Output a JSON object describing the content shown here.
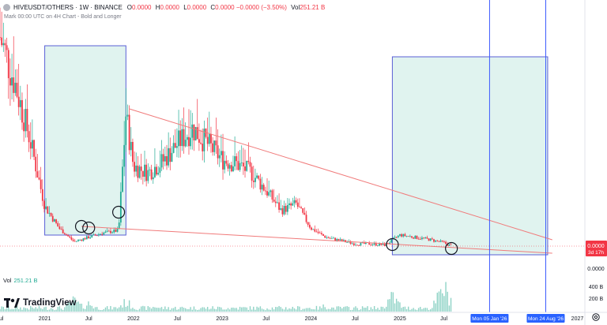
{
  "header": {
    "symbol_line": "HIVEUSDT/OTHERS · 1W · BINANCE",
    "ohlc": [
      {
        "k": "O",
        "v": "0.0000"
      },
      {
        "k": "H",
        "v": "0.0000"
      },
      {
        "k": "L",
        "v": "0.0000"
      },
      {
        "k": "C",
        "v": "0.0000 −0.0000 (−3.50%)"
      },
      {
        "k": "Vol",
        "v": "251.21 B"
      }
    ],
    "mark_line": "Mark 00:00 UTC on 4H Chart - Bold and Longer"
  },
  "volume": {
    "label": "Vol",
    "value": "251.21 B"
  },
  "logo": {
    "text": "TradingView"
  },
  "price_axis": {
    "labels": [
      "0.0000"
    ],
    "current_price": "0.0000",
    "countdown": "3d 17h",
    "badge_color": "#f23645"
  },
  "volume_axis": {
    "labels": [
      "400 B",
      "200 B"
    ]
  },
  "time_axis": {
    "labels": [
      "Jul",
      "2021",
      "Jul",
      "2022",
      "Jul",
      "2023",
      "Jul",
      "2024",
      "Jul",
      "2025",
      "Jul",
      "2027"
    ],
    "range_labels": [
      "Mon 05 Jan '26",
      "Mon 24 Aug '26"
    ]
  },
  "chart_data": {
    "type": "candlestick",
    "symbol": "HIVEUSDT/OTHERS",
    "interval": "1W",
    "exchange": "BINANCE",
    "x_range": [
      "2020-07",
      "2027-02"
    ],
    "trend": [
      {
        "date": "2020-07",
        "level": 0.94
      },
      {
        "date": "2020-09",
        "level": 0.73
      },
      {
        "date": "2020-11",
        "level": 0.48
      },
      {
        "date": "2021-01",
        "level": 0.18
      },
      {
        "date": "2021-03",
        "level": 0.08
      },
      {
        "date": "2021-05",
        "level": 0.02
      },
      {
        "date": "2021-07",
        "level": 0.04
      },
      {
        "date": "2021-09",
        "level": 0.06
      },
      {
        "date": "2021-11",
        "level": 0.07
      },
      {
        "date": "2021-12",
        "level": 0.59
      },
      {
        "date": "2022-01",
        "level": 0.36
      },
      {
        "date": "2022-03",
        "level": 0.33
      },
      {
        "date": "2022-05",
        "level": 0.38
      },
      {
        "date": "2022-07",
        "level": 0.46
      },
      {
        "date": "2022-09",
        "level": 0.53
      },
      {
        "date": "2022-11",
        "level": 0.46
      },
      {
        "date": "2023-01",
        "level": 0.39
      },
      {
        "date": "2023-03",
        "level": 0.37
      },
      {
        "date": "2023-05",
        "level": 0.33
      },
      {
        "date": "2023-07",
        "level": 0.25
      },
      {
        "date": "2023-09",
        "level": 0.16
      },
      {
        "date": "2023-11",
        "level": 0.19
      },
      {
        "date": "2024-01",
        "level": 0.08
      },
      {
        "date": "2024-03",
        "level": 0.04
      },
      {
        "date": "2024-05",
        "level": 0.025
      },
      {
        "date": "2024-07",
        "level": 0.01
      },
      {
        "date": "2024-09",
        "level": 0.01
      },
      {
        "date": "2024-11",
        "level": 0.005
      },
      {
        "date": "2025-01",
        "level": 0.05
      },
      {
        "date": "2025-03",
        "level": 0.04
      },
      {
        "date": "2025-05",
        "level": 0.03
      },
      {
        "date": "2025-07",
        "level": 0.015
      },
      {
        "date": "2025-08",
        "level": 0.0
      }
    ],
    "trendlines": [
      {
        "from": "2021-12",
        "to": "2026-09",
        "color": "#f07a7a"
      },
      {
        "from": "2021-06",
        "to": "2026-09",
        "color": "#f07a7a"
      }
    ],
    "boxes": [
      {
        "from": "2021-01",
        "to": "2021-12"
      },
      {
        "from": "2024-12",
        "to": "2026-09"
      }
    ],
    "markers": [
      "2021-06",
      "2021-07",
      "2021-11",
      "2024-12",
      "2025-08"
    ],
    "vertical_lines": [
      "2026-01-05",
      "2026-08-24"
    ],
    "volume": [
      {
        "date": "2021-05",
        "value": 240
      },
      {
        "date": "2021-07",
        "value": 180
      },
      {
        "date": "2021-12",
        "value": 210
      },
      {
        "date": "2022-04",
        "value": 120
      },
      {
        "date": "2023-01",
        "value": 90
      },
      {
        "date": "2024-03",
        "value": 130
      },
      {
        "date": "2024-12",
        "value": 320
      },
      {
        "date": "2025-07",
        "value": 510
      }
    ]
  },
  "colors": {
    "up": "#22ab94",
    "down": "#f23645",
    "box_fill": "#d5efe9",
    "box_stroke": "#5a5fd6",
    "trendline": "#f07a7a",
    "vline": "#3d5afe",
    "volume": "#8fd3c6"
  }
}
